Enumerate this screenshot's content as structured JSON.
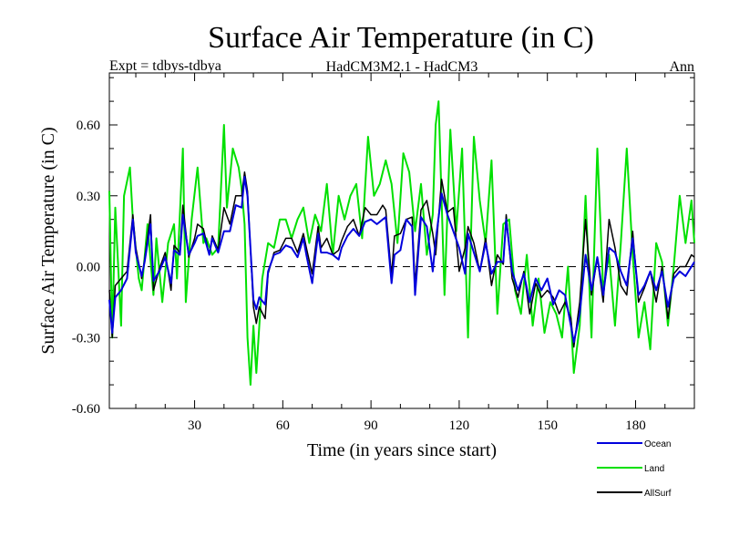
{
  "chart_data": {
    "type": "line",
    "title": "Surface Air Temperature (in C)",
    "subtitle_left": "Expt = tdbys-tdbya",
    "subtitle_center": "HadCM3M2.1 - HadCM3",
    "subtitle_right": "Ann",
    "xlabel": "Time (in years since start)",
    "ylabel": "Surface Air Temperature (in C)",
    "xlim": [
      1,
      200
    ],
    "ylim": [
      -0.6,
      0.82
    ],
    "x_ticks": [
      30,
      60,
      90,
      120,
      150,
      180
    ],
    "y_ticks": [
      -0.6,
      -0.3,
      0.0,
      0.3,
      0.6
    ],
    "y_tick_labels": [
      "-0.60",
      "-0.30",
      "0.00",
      "0.30",
      "0.60"
    ],
    "reference_line": 0,
    "legend_position": "bottom-right, below plot",
    "series": [
      {
        "name": "Ocean",
        "color": "#0000dd",
        "x": [
          1,
          2,
          3,
          5,
          7,
          9,
          10,
          12,
          13,
          15,
          16,
          18,
          20,
          22,
          23,
          25,
          26,
          28,
          30,
          31,
          33,
          35,
          36,
          38,
          40,
          42,
          44,
          46,
          47,
          48,
          50,
          51,
          52,
          54,
          55,
          57,
          59,
          61,
          63,
          65,
          67,
          68,
          70,
          72,
          73,
          75,
          77,
          79,
          80,
          82,
          84,
          86,
          88,
          90,
          92,
          94,
          95,
          97,
          98,
          100,
          102,
          104,
          105,
          107,
          109,
          111,
          112,
          114,
          116,
          118,
          120,
          122,
          123,
          125,
          127,
          129,
          131,
          133,
          135,
          136,
          138,
          140,
          142,
          144,
          146,
          148,
          150,
          152,
          154,
          156,
          158,
          159,
          161,
          163,
          165,
          167,
          169,
          171,
          173,
          175,
          177,
          179,
          181,
          183,
          185,
          187,
          189,
          191,
          193,
          195,
          197,
          199,
          200
        ],
        "y": [
          -0.14,
          -0.28,
          -0.13,
          -0.1,
          -0.05,
          0.2,
          0.06,
          -0.04,
          0.02,
          0.18,
          -0.06,
          -0.02,
          0.04,
          -0.07,
          0.07,
          0.05,
          0.22,
          0.05,
          0.1,
          0.13,
          0.14,
          0.05,
          0.12,
          0.06,
          0.15,
          0.15,
          0.26,
          0.25,
          0.38,
          0.3,
          -0.14,
          -0.18,
          -0.13,
          -0.16,
          -0.02,
          0.05,
          0.06,
          0.09,
          0.08,
          0.04,
          0.12,
          0.05,
          -0.07,
          0.14,
          0.06,
          0.06,
          0.05,
          0.03,
          0.08,
          0.13,
          0.16,
          0.13,
          0.19,
          0.2,
          0.18,
          0.2,
          0.21,
          -0.07,
          0.05,
          0.07,
          0.2,
          0.17,
          -0.12,
          0.21,
          0.17,
          -0.02,
          0.11,
          0.31,
          0.22,
          0.15,
          0.08,
          -0.03,
          0.14,
          0.06,
          -0.02,
          0.1,
          -0.03,
          0.02,
          0.02,
          0.2,
          -0.02,
          -0.1,
          -0.03,
          -0.15,
          -0.05,
          -0.1,
          -0.05,
          -0.16,
          -0.1,
          -0.12,
          -0.25,
          -0.32,
          -0.2,
          0.05,
          -0.1,
          0.04,
          -0.12,
          0.08,
          0.06,
          -0.02,
          -0.08,
          0.12,
          -0.12,
          -0.08,
          -0.02,
          -0.1,
          -0.02,
          -0.17,
          -0.05,
          -0.02,
          -0.04,
          0.0,
          0.02
        ]
      },
      {
        "name": "Land",
        "color": "#00e000",
        "x": [
          1,
          2,
          3,
          5,
          6,
          8,
          9,
          11,
          12,
          14,
          16,
          17,
          19,
          21,
          23,
          24,
          26,
          27,
          29,
          31,
          33,
          34,
          36,
          38,
          40,
          41,
          43,
          45,
          46,
          47,
          48,
          49,
          50,
          51,
          53,
          55,
          57,
          59,
          61,
          63,
          65,
          67,
          69,
          71,
          73,
          75,
          77,
          79,
          81,
          83,
          85,
          87,
          89,
          91,
          93,
          95,
          97,
          99,
          101,
          103,
          105,
          107,
          109,
          111,
          112,
          113,
          115,
          117,
          119,
          121,
          123,
          125,
          127,
          129,
          131,
          133,
          135,
          137,
          139,
          141,
          143,
          145,
          147,
          149,
          151,
          153,
          155,
          157,
          159,
          161,
          163,
          165,
          167,
          169,
          171,
          173,
          175,
          177,
          179,
          181,
          183,
          185,
          187,
          189,
          191,
          193,
          195,
          197,
          199,
          200
        ],
        "y": [
          0.32,
          -0.3,
          0.25,
          -0.25,
          0.3,
          0.42,
          0.2,
          -0.05,
          -0.1,
          0.18,
          -0.12,
          0.12,
          -0.15,
          0.1,
          0.18,
          -0.05,
          0.5,
          -0.15,
          0.2,
          0.42,
          0.1,
          0.12,
          0.05,
          0.08,
          0.6,
          0.25,
          0.5,
          0.42,
          0.33,
          0.18,
          -0.3,
          -0.5,
          -0.25,
          -0.45,
          -0.05,
          0.1,
          0.08,
          0.2,
          0.2,
          0.12,
          0.2,
          0.25,
          0.1,
          0.22,
          0.15,
          0.35,
          0.05,
          0.3,
          0.2,
          0.3,
          0.35,
          0.12,
          0.55,
          0.3,
          0.35,
          0.45,
          0.35,
          0.1,
          0.48,
          0.4,
          0.15,
          0.35,
          0.05,
          0.22,
          0.6,
          0.7,
          -0.12,
          0.58,
          0.15,
          0.5,
          -0.3,
          0.55,
          0.28,
          0.1,
          0.45,
          -0.2,
          0.18,
          0.2,
          -0.1,
          -0.2,
          0.05,
          -0.25,
          -0.05,
          -0.28,
          -0.15,
          -0.2,
          -0.3,
          0.0,
          -0.45,
          -0.25,
          0.3,
          -0.3,
          0.5,
          -0.1,
          0.05,
          -0.25,
          0.1,
          0.5,
          0.05,
          -0.3,
          -0.15,
          -0.35,
          0.1,
          0.02,
          -0.25,
          0.0,
          0.3,
          0.1,
          0.28,
          0.1
        ]
      },
      {
        "name": "AllSurf",
        "color": "#000000",
        "x": [
          1,
          2,
          3,
          5,
          7,
          9,
          10,
          12,
          13,
          15,
          16,
          18,
          20,
          22,
          23,
          25,
          26,
          28,
          30,
          31,
          33,
          35,
          36,
          38,
          40,
          42,
          44,
          46,
          47,
          48,
          50,
          51,
          52,
          54,
          55,
          57,
          59,
          61,
          63,
          65,
          67,
          68,
          70,
          72,
          73,
          75,
          77,
          79,
          80,
          82,
          84,
          86,
          88,
          90,
          92,
          94,
          95,
          97,
          98,
          100,
          102,
          104,
          105,
          107,
          109,
          111,
          112,
          114,
          116,
          118,
          120,
          122,
          123,
          125,
          127,
          129,
          131,
          133,
          135,
          136,
          138,
          140,
          142,
          144,
          146,
          148,
          150,
          152,
          154,
          156,
          158,
          159,
          161,
          163,
          165,
          167,
          169,
          171,
          173,
          175,
          177,
          179,
          181,
          183,
          185,
          187,
          189,
          191,
          193,
          195,
          197,
          199,
          200
        ],
        "y": [
          -0.1,
          -0.3,
          -0.08,
          -0.05,
          -0.02,
          0.22,
          0.08,
          -0.05,
          0.03,
          0.22,
          -0.1,
          -0.01,
          0.06,
          -0.1,
          0.09,
          0.06,
          0.26,
          0.04,
          0.12,
          0.18,
          0.16,
          0.05,
          0.13,
          0.07,
          0.25,
          0.18,
          0.3,
          0.3,
          0.4,
          0.32,
          -0.17,
          -0.24,
          -0.17,
          -0.22,
          -0.03,
          0.06,
          0.07,
          0.12,
          0.12,
          0.06,
          0.14,
          0.08,
          -0.03,
          0.17,
          0.08,
          0.12,
          0.05,
          0.07,
          0.11,
          0.17,
          0.2,
          0.13,
          0.25,
          0.22,
          0.22,
          0.26,
          0.24,
          -0.04,
          0.13,
          0.14,
          0.2,
          0.21,
          -0.08,
          0.24,
          0.28,
          0.14,
          0.05,
          0.37,
          0.23,
          0.25,
          -0.02,
          0.08,
          0.17,
          0.1,
          -0.02,
          0.12,
          -0.08,
          0.05,
          0.01,
          0.22,
          -0.05,
          -0.13,
          -0.02,
          -0.2,
          -0.07,
          -0.13,
          -0.1,
          -0.13,
          -0.2,
          -0.15,
          -0.22,
          -0.34,
          -0.15,
          0.2,
          -0.12,
          0.04,
          -0.15,
          0.2,
          0.08,
          -0.08,
          -0.12,
          0.15,
          -0.15,
          -0.09,
          -0.02,
          -0.15,
          0.0,
          -0.22,
          -0.03,
          0.0,
          0.0,
          0.05,
          0.04
        ]
      }
    ]
  }
}
